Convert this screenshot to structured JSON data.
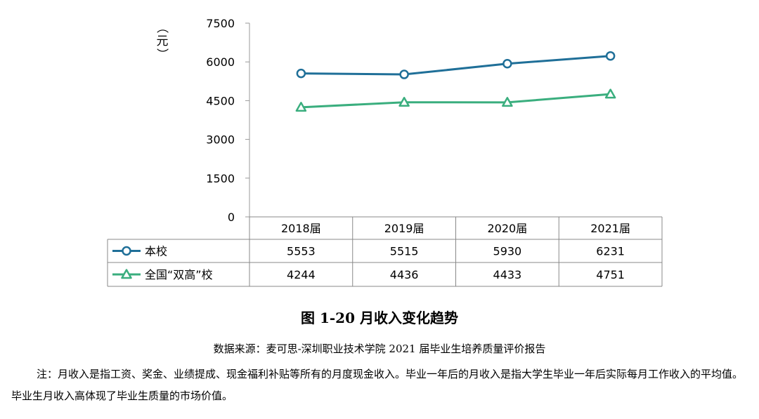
{
  "chart_data": {
    "type": "line",
    "categories": [
      "2018届",
      "2019届",
      "2020届",
      "2021届"
    ],
    "series": [
      {
        "name": "本校",
        "values": [
          5553,
          5515,
          5930,
          6231
        ],
        "color": "#1f6f98",
        "marker": "circle"
      },
      {
        "name": "全国“双高”校",
        "values": [
          4244,
          4436,
          4433,
          4751
        ],
        "color": "#3aae7e",
        "marker": "triangle"
      }
    ],
    "yticks": [
      "0",
      "1500",
      "3000",
      "4500",
      "6000",
      "7500"
    ],
    "ylim": [
      0,
      7500
    ],
    "ylabel": "（元）",
    "ylabel_chars": [
      "（",
      "元",
      "）"
    ],
    "grid": false,
    "data_table": true
  },
  "caption": "图 1-20 月收入变化趋势",
  "source": "数据来源：麦可思-深圳职业技术学院 2021 届毕业生培养质量评价报告",
  "note": "注：月收入是指工资、奖金、业绩提成、现金福利补贴等所有的月度现金收入。毕业一年后的月收入是指大学生毕业一年后实际每月工作收入的平均值。毕业生月收入高体现了毕业生质量的市场价值。"
}
